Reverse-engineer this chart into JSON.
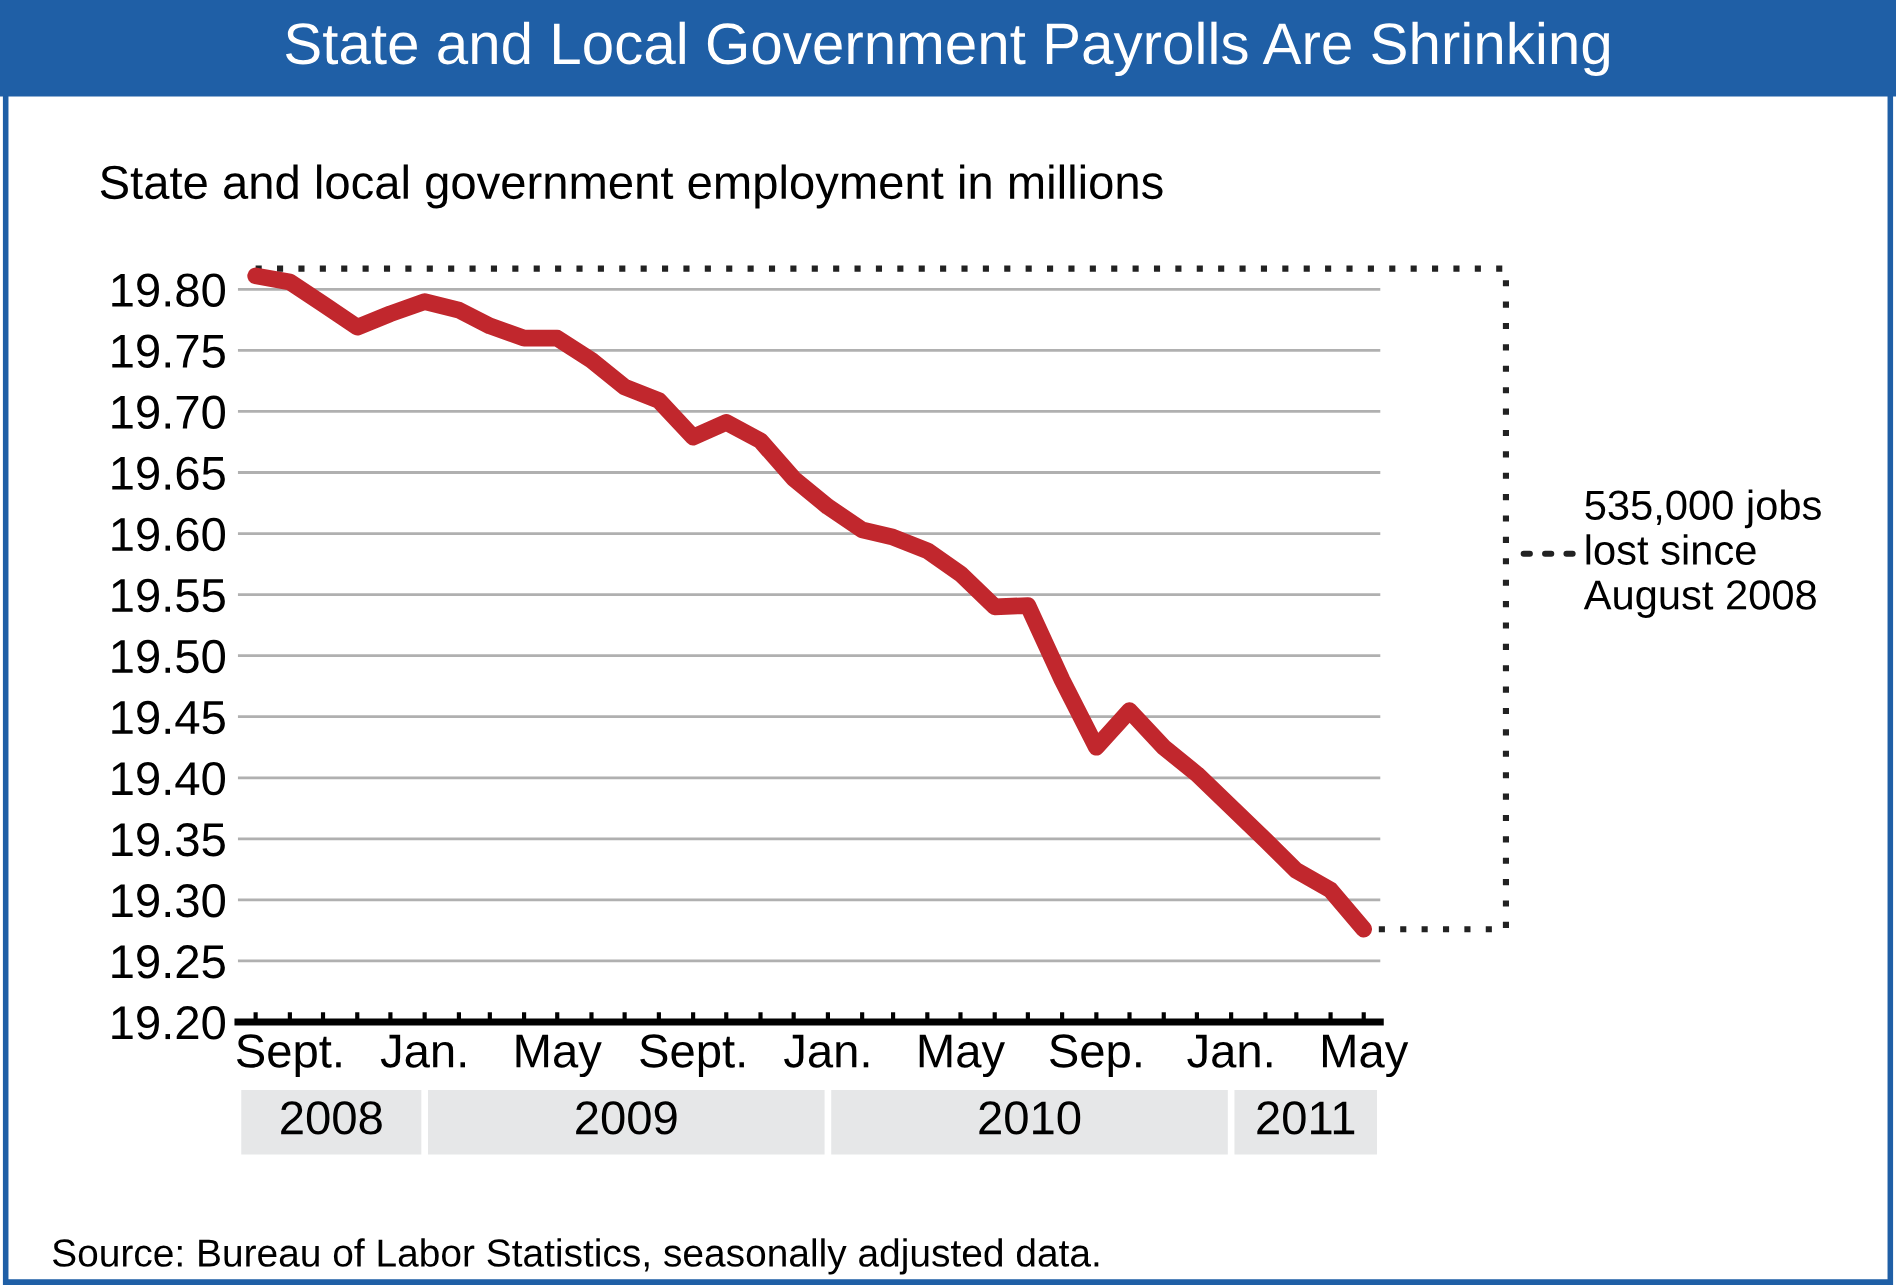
{
  "chart_data": {
    "type": "line",
    "title": "State and Local Government Payrolls Are Shrinking",
    "ylabel": "State and local government employment in millions",
    "x": [
      "2008-08",
      "2008-09",
      "2008-10",
      "2008-11",
      "2008-12",
      "2009-01",
      "2009-02",
      "2009-03",
      "2009-04",
      "2009-05",
      "2009-06",
      "2009-07",
      "2009-08",
      "2009-09",
      "2009-10",
      "2009-11",
      "2009-12",
      "2010-01",
      "2010-02",
      "2010-03",
      "2010-04",
      "2010-05",
      "2010-06",
      "2010-07",
      "2010-08",
      "2010-09",
      "2010-10",
      "2010-11",
      "2010-12",
      "2011-01",
      "2011-02",
      "2011-03",
      "2011-04",
      "2011-05"
    ],
    "series": [
      {
        "color": "#c1272d",
        "values": [
          19.811,
          19.806,
          19.788,
          19.769,
          19.78,
          19.79,
          19.783,
          19.77,
          19.76,
          19.76,
          19.742,
          19.72,
          19.709,
          19.679,
          19.691,
          19.676,
          19.645,
          19.622,
          19.603,
          19.597,
          19.586,
          19.567,
          19.54,
          19.541,
          19.48,
          19.425,
          19.455,
          19.425,
          19.403,
          19.376,
          19.349,
          19.324,
          19.308,
          19.276
        ]
      }
    ],
    "xlim": [
      "2008-07-16",
      "2011-05-16"
    ],
    "xticks": [
      {
        "value": "2008-08",
        "label": null
      },
      {
        "value": "2008-09",
        "label": "Sept."
      },
      {
        "value": "2008-10",
        "label": null
      },
      {
        "value": "2008-11",
        "label": null
      },
      {
        "value": "2008-12",
        "label": null
      },
      {
        "value": "2009-01",
        "label": "Jan."
      },
      {
        "value": "2009-02",
        "label": null
      },
      {
        "value": "2009-03",
        "label": null
      },
      {
        "value": "2009-04",
        "label": null
      },
      {
        "value": "2009-05",
        "label": "May"
      },
      {
        "value": "2009-06",
        "label": null
      },
      {
        "value": "2009-07",
        "label": null
      },
      {
        "value": "2009-08",
        "label": null
      },
      {
        "value": "2009-09",
        "label": "Sept."
      },
      {
        "value": "2009-10",
        "label": null
      },
      {
        "value": "2009-11",
        "label": null
      },
      {
        "value": "2009-12",
        "label": null
      },
      {
        "value": "2010-01",
        "label": "Jan."
      },
      {
        "value": "2010-02",
        "label": null
      },
      {
        "value": "2010-03",
        "label": null
      },
      {
        "value": "2010-04",
        "label": null
      },
      {
        "value": "2010-05",
        "label": "May"
      },
      {
        "value": "2010-06",
        "label": null
      },
      {
        "value": "2010-07",
        "label": null
      },
      {
        "value": "2010-08",
        "label": null
      },
      {
        "value": "2010-09",
        "label": "Sep."
      },
      {
        "value": "2010-10",
        "label": null
      },
      {
        "value": "2010-11",
        "label": null
      },
      {
        "value": "2010-12",
        "label": null
      },
      {
        "value": "2011-01",
        "label": "Jan."
      },
      {
        "value": "2011-02",
        "label": null
      },
      {
        "value": "2011-03",
        "label": null
      },
      {
        "value": "2011-04",
        "label": null
      },
      {
        "value": "2011-05",
        "label": "May"
      }
    ],
    "ylim": [
      19.2,
      19.82
    ],
    "yticks": [
      {
        "value": 19.2,
        "label": "19.20"
      },
      {
        "value": 19.25,
        "label": "19.25"
      },
      {
        "value": 19.3,
        "label": "19.30"
      },
      {
        "value": 19.35,
        "label": "19.35"
      },
      {
        "value": 19.4,
        "label": "19.40"
      },
      {
        "value": 19.45,
        "label": "19.45"
      },
      {
        "value": 19.5,
        "label": "19.50"
      },
      {
        "value": 19.55,
        "label": "19.55"
      },
      {
        "value": 19.6,
        "label": "19.60"
      },
      {
        "value": 19.65,
        "label": "19.65"
      },
      {
        "value": 19.7,
        "label": "19.70"
      },
      {
        "value": 19.75,
        "label": "19.75"
      },
      {
        "value": 19.8,
        "label": "19.80"
      }
    ],
    "grid": "y",
    "marker": "none",
    "line_style": "solid",
    "legend": false,
    "annotations": [
      "2008",
      "2009",
      "2010",
      "2011",
      "535,000 jobs\nlost since\nAugust 2008",
      "Source: Bureau of Labor Statistics, seasonally adjusted data."
    ]
  }
}
